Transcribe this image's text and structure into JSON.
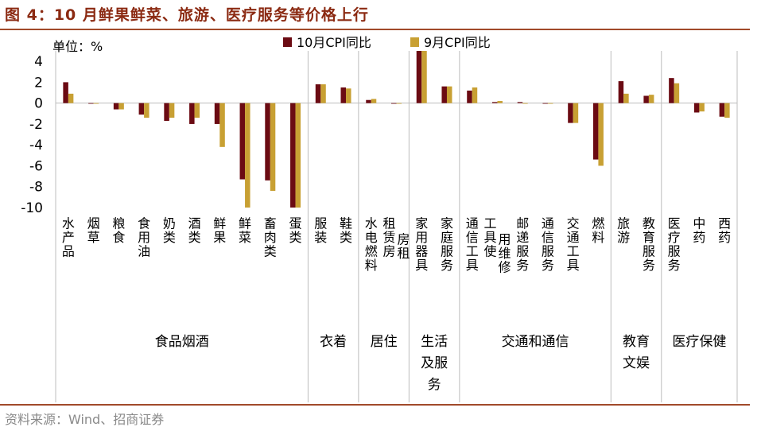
{
  "figure": {
    "title": "图 4：10 月鲜果鲜菜、旅游、医疗服务等价格上行",
    "source": "资料来源：Wind、招商证券"
  },
  "chart_data": {
    "type": "bar",
    "unit_label": "单位：%",
    "ylim": [
      -10,
      5
    ],
    "yticks": [
      4,
      2,
      0,
      -2,
      -4,
      -6,
      -8,
      -10
    ],
    "colors": {
      "oct": "#6b0b13",
      "sep": "#c8a033"
    },
    "categories": [
      "水产品",
      "烟草",
      "粮食",
      "食用油",
      "奶类",
      "酒类",
      "鲜果",
      "鲜菜",
      "畜肉类",
      "蛋类",
      "服装",
      "鞋类",
      "水电燃料",
      "租赁房房租",
      "家用器具",
      "家庭服务",
      "通信工具",
      "工具使用维修",
      "邮递服务",
      "通信服务",
      "交通工具",
      "燃料",
      "旅游",
      "教育服务",
      "医疗服务",
      "中药",
      "西药"
    ],
    "series": [
      {
        "name": "10月CPI同比",
        "values": [
          2.0,
          0.0,
          -0.6,
          -1.1,
          -1.7,
          -2.0,
          -2.0,
          -7.3,
          -7.4,
          -10.4,
          1.8,
          1.5,
          0.3,
          0.0,
          5.2,
          1.6,
          1.2,
          0.1,
          0.1,
          0.0,
          -1.9,
          -5.4,
          2.1,
          0.7,
          2.4,
          -0.9,
          -1.3
        ]
      },
      {
        "name": "9月CPI同比",
        "values": [
          0.9,
          0.0,
          -0.6,
          -1.4,
          -1.4,
          -1.4,
          -4.2,
          -10.5,
          -8.4,
          -10.3,
          1.8,
          1.4,
          0.4,
          0.0,
          5.1,
          1.6,
          1.5,
          0.2,
          0.0,
          0.0,
          -1.9,
          -6.0,
          0.9,
          0.8,
          1.9,
          -0.8,
          -1.4
        ]
      }
    ],
    "groups": [
      {
        "name": "食品烟酒",
        "count": 10
      },
      {
        "name": "衣着",
        "count": 2
      },
      {
        "name": "居住",
        "count": 2
      },
      {
        "name": "生活及服务",
        "count": 2
      },
      {
        "name": "交通和通信",
        "count": 6
      },
      {
        "name": "教育文娱",
        "count": 2
      },
      {
        "name": "医疗保健",
        "count": 3
      }
    ]
  }
}
